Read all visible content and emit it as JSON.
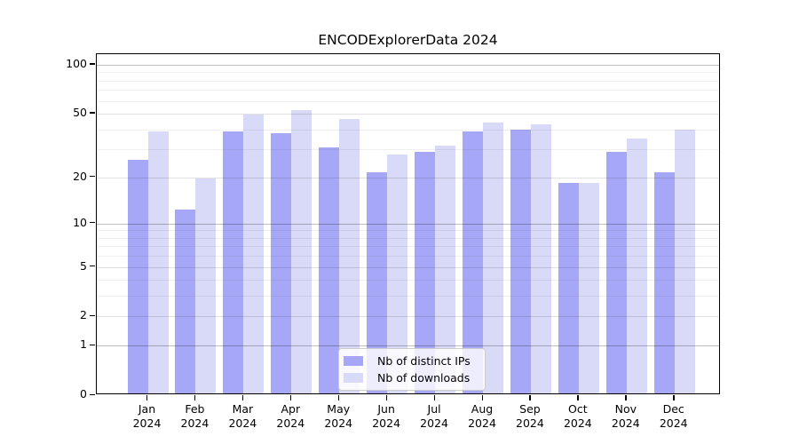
{
  "chart_data": {
    "type": "bar",
    "title": "ENCODExplorerData 2024",
    "categories": [
      "Jan",
      "Feb",
      "Mar",
      "Apr",
      "May",
      "Jun",
      "Jul",
      "Aug",
      "Sep",
      "Oct",
      "Nov",
      "Dec"
    ],
    "year_label": "2024",
    "series": [
      {
        "name": "Nb of distinct IPs",
        "color": "#a7a7f7",
        "values": [
          25,
          12,
          38,
          37,
          30,
          21,
          28,
          38,
          39,
          18,
          28,
          21
        ]
      },
      {
        "name": "Nb of downloads",
        "color": "#d9d9f8",
        "values": [
          38,
          19,
          48,
          51,
          45,
          27,
          31,
          43,
          42,
          18,
          34,
          39
        ]
      }
    ],
    "yscale": "log1p",
    "ylim": [
      0,
      116
    ],
    "yticks": [
      0,
      1,
      2,
      5,
      10,
      20,
      50,
      100
    ],
    "grid": {
      "decade_lines": [
        1,
        10,
        100
      ],
      "mid_lines": [
        2,
        5,
        20,
        50
      ],
      "minor_lines": [
        3,
        4,
        6,
        7,
        8,
        9,
        30,
        40,
        60,
        70,
        80,
        90
      ],
      "decade_color": "rgba(0,0,0,0.26)",
      "mid_color": "rgba(0,0,0,0.12)",
      "minor_color": "rgba(0,0,0,0.06)"
    },
    "legend_position": "bottom-center",
    "xlabel": "",
    "ylabel": ""
  }
}
